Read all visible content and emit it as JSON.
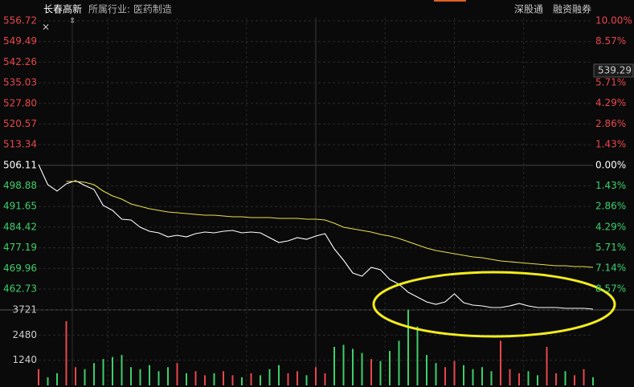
{
  "header": {
    "name": "长春高新",
    "industry": "所属行业: 医药制造",
    "tags": [
      "深股通",
      "融资融券"
    ]
  },
  "chart_data": [
    {
      "type": "line",
      "series": [
        {
          "color": "#ffffff",
          "values": [
            506.35,
            499.31,
            497.06,
            499.6,
            500.72,
            499.03,
            497.63,
            492.0,
            490.31,
            487.21,
            486.93,
            484.4,
            482.99,
            482.43,
            481.02,
            481.59,
            481.02,
            482.15,
            482.71,
            482.43,
            482.99,
            483.27,
            482.43,
            482.71,
            482.43,
            480.74,
            479.05,
            479.62,
            480.74,
            480.18,
            481.3,
            482.15,
            476.8,
            472.86,
            468.36,
            467.23,
            470.33,
            469.49,
            466.11,
            464.42,
            461.61,
            459.92,
            458.23,
            457.39,
            458.23,
            461.04,
            457.95,
            457.1,
            456.82,
            456.26,
            456.26,
            456.82,
            457.67,
            456.82,
            456.26,
            456.26,
            456.26,
            455.98,
            455.98,
            455.98,
            455.7
          ]
        },
        {
          "color": "#e8e04a",
          "values": [
            null,
            null,
            null,
            500.44,
            500.44,
            500.16,
            499.31,
            497.06,
            495.37,
            494.25,
            492.56,
            491.72,
            490.87,
            490.31,
            489.75,
            489.47,
            489.18,
            488.9,
            488.62,
            488.62,
            488.34,
            488.06,
            488.06,
            487.78,
            487.78,
            487.78,
            487.5,
            487.5,
            487.5,
            487.21,
            487.21,
            486.93,
            485.81,
            484.4,
            483.84,
            483.27,
            482.71,
            481.87,
            481.3,
            480.46,
            479.33,
            478.21,
            477.08,
            476.24,
            475.68,
            475.11,
            474.55,
            473.99,
            473.71,
            473.14,
            472.58,
            472.3,
            472.02,
            471.74,
            471.46,
            471.17,
            470.89,
            470.89,
            470.61,
            470.61,
            470.33
          ]
        }
      ],
      "ylim": [
        455.41,
        556.72
      ],
      "yticks": [
        556.72,
        549.49,
        542.26,
        535.03,
        {
          "value": 527.8,
          "label": "527.80"
        },
        520.57,
        513.34,
        506.11,
        498.88,
        491.65,
        484.42,
        477.19,
        469.96,
        462.73
      ],
      "y2lim": [
        -10.02,
        10
      ],
      "y2ticks": [
        {
          "value": 10,
          "label": "10.00%"
        },
        {
          "value": 8.57,
          "label": "8.57%"
        },
        {
          "value": 5.71,
          "label": "5.71%"
        },
        {
          "value": 4.29,
          "label": "4.29%"
        },
        {
          "value": 2.86,
          "label": "2.86%"
        },
        {
          "value": 1.43,
          "label": "1.43%"
        },
        {
          "value": 0,
          "label": "0.00%"
        },
        {
          "value": -1.43,
          "label": "1.43%"
        },
        {
          "value": -2.86,
          "label": "2.86%"
        },
        {
          "value": -4.29,
          "label": "4.29%"
        },
        {
          "value": -5.71,
          "label": "5.71%"
        },
        {
          "value": -7.14,
          "label": "7.14%"
        },
        {
          "value": -8.57,
          "label": "8.57%"
        }
      ],
      "cursor": {
        "value": 539.29,
        "label": "539.29"
      },
      "up_color": "#e8474c",
      "down_color": "#3dd06b",
      "grid": true
    },
    {
      "type": "bar",
      "values": [
        800,
        400,
        600,
        3170,
        900,
        800,
        1100,
        1300,
        1400,
        1500,
        900,
        800,
        1000,
        700,
        900,
        1100,
        600,
        700,
        500,
        600,
        700,
        500,
        400,
        600,
        500,
        800,
        1000,
        600,
        700,
        500,
        900,
        600,
        1900,
        2000,
        1800,
        1600,
        1300,
        1200,
        1700,
        2200,
        3721,
        2900,
        1500,
        1100,
        900,
        1200,
        1000,
        800,
        900,
        700,
        2200,
        800,
        600,
        700,
        500,
        1900,
        600,
        700,
        500,
        800,
        400
      ],
      "ylim": [
        0,
        3721
      ],
      "yticks": [
        1240,
        2480,
        3721
      ],
      "up_color": "#e8474c",
      "down_color": "#3dd06b"
    }
  ]
}
